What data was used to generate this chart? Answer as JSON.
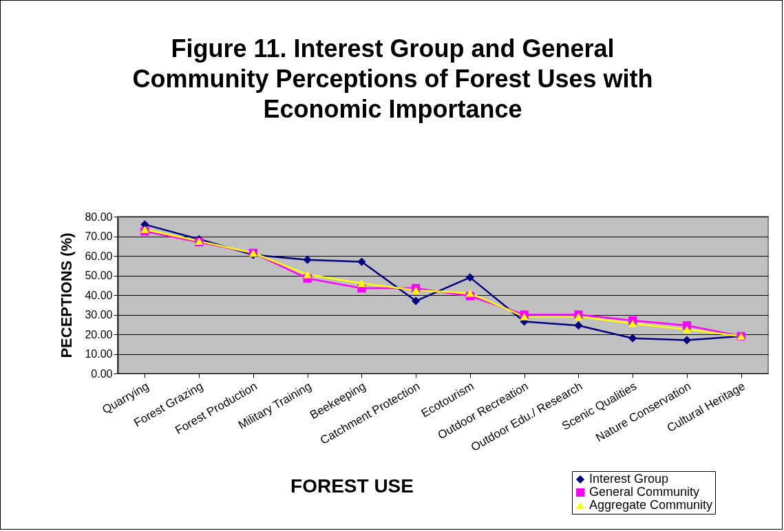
{
  "chart_data": {
    "type": "line",
    "title": "Figure 11.  Interest Group and General Community Perceptions of Forest Uses with Economic Importance",
    "xlabel": "FOREST USE",
    "ylabel": "PECEPTIONS (%)",
    "categories": [
      "Quarrying",
      "Forest Grazing",
      "Forest Production",
      "Military Training",
      "Beekeeping",
      "Catchment Protection",
      "Ecotourism",
      "Outdoor Recreation",
      "Outdoor Edu./ Research",
      "Scenic Qualities",
      "Nature Conservation",
      "Cultural Heritage"
    ],
    "series": [
      {
        "name": "Interest Group",
        "color": "#000080",
        "marker": "diamond",
        "values": [
          76,
          68.5,
          60.5,
          58,
          57,
          37,
          49,
          26.5,
          24.5,
          18,
          17,
          19
        ]
      },
      {
        "name": "General Community",
        "color": "#ff00ff",
        "marker": "square",
        "values": [
          72.5,
          67,
          61.5,
          48.5,
          43.5,
          43.5,
          39.5,
          30,
          30,
          27,
          24.5,
          19
        ]
      },
      {
        "name": "Aggregate Community",
        "color": "#ffff00",
        "marker": "triangle",
        "values": [
          73.5,
          67.5,
          61.5,
          50.5,
          46,
          42.5,
          41,
          29,
          29,
          25.5,
          22.5,
          19
        ]
      }
    ],
    "ylim": [
      0,
      80
    ],
    "yticks": [
      {
        "value": 0,
        "label": "0.00"
      },
      {
        "value": 10,
        "label": "10.00"
      },
      {
        "value": 20,
        "label": "20.00"
      },
      {
        "value": 30,
        "label": "30.00"
      },
      {
        "value": 40,
        "label": "40.00"
      },
      {
        "value": 50,
        "label": "50.00"
      },
      {
        "value": 60,
        "label": "60.00"
      },
      {
        "value": 70,
        "label": "70.00"
      },
      {
        "value": 80,
        "label": "80.00"
      }
    ],
    "grid": "y",
    "legend": "bottom right"
  }
}
